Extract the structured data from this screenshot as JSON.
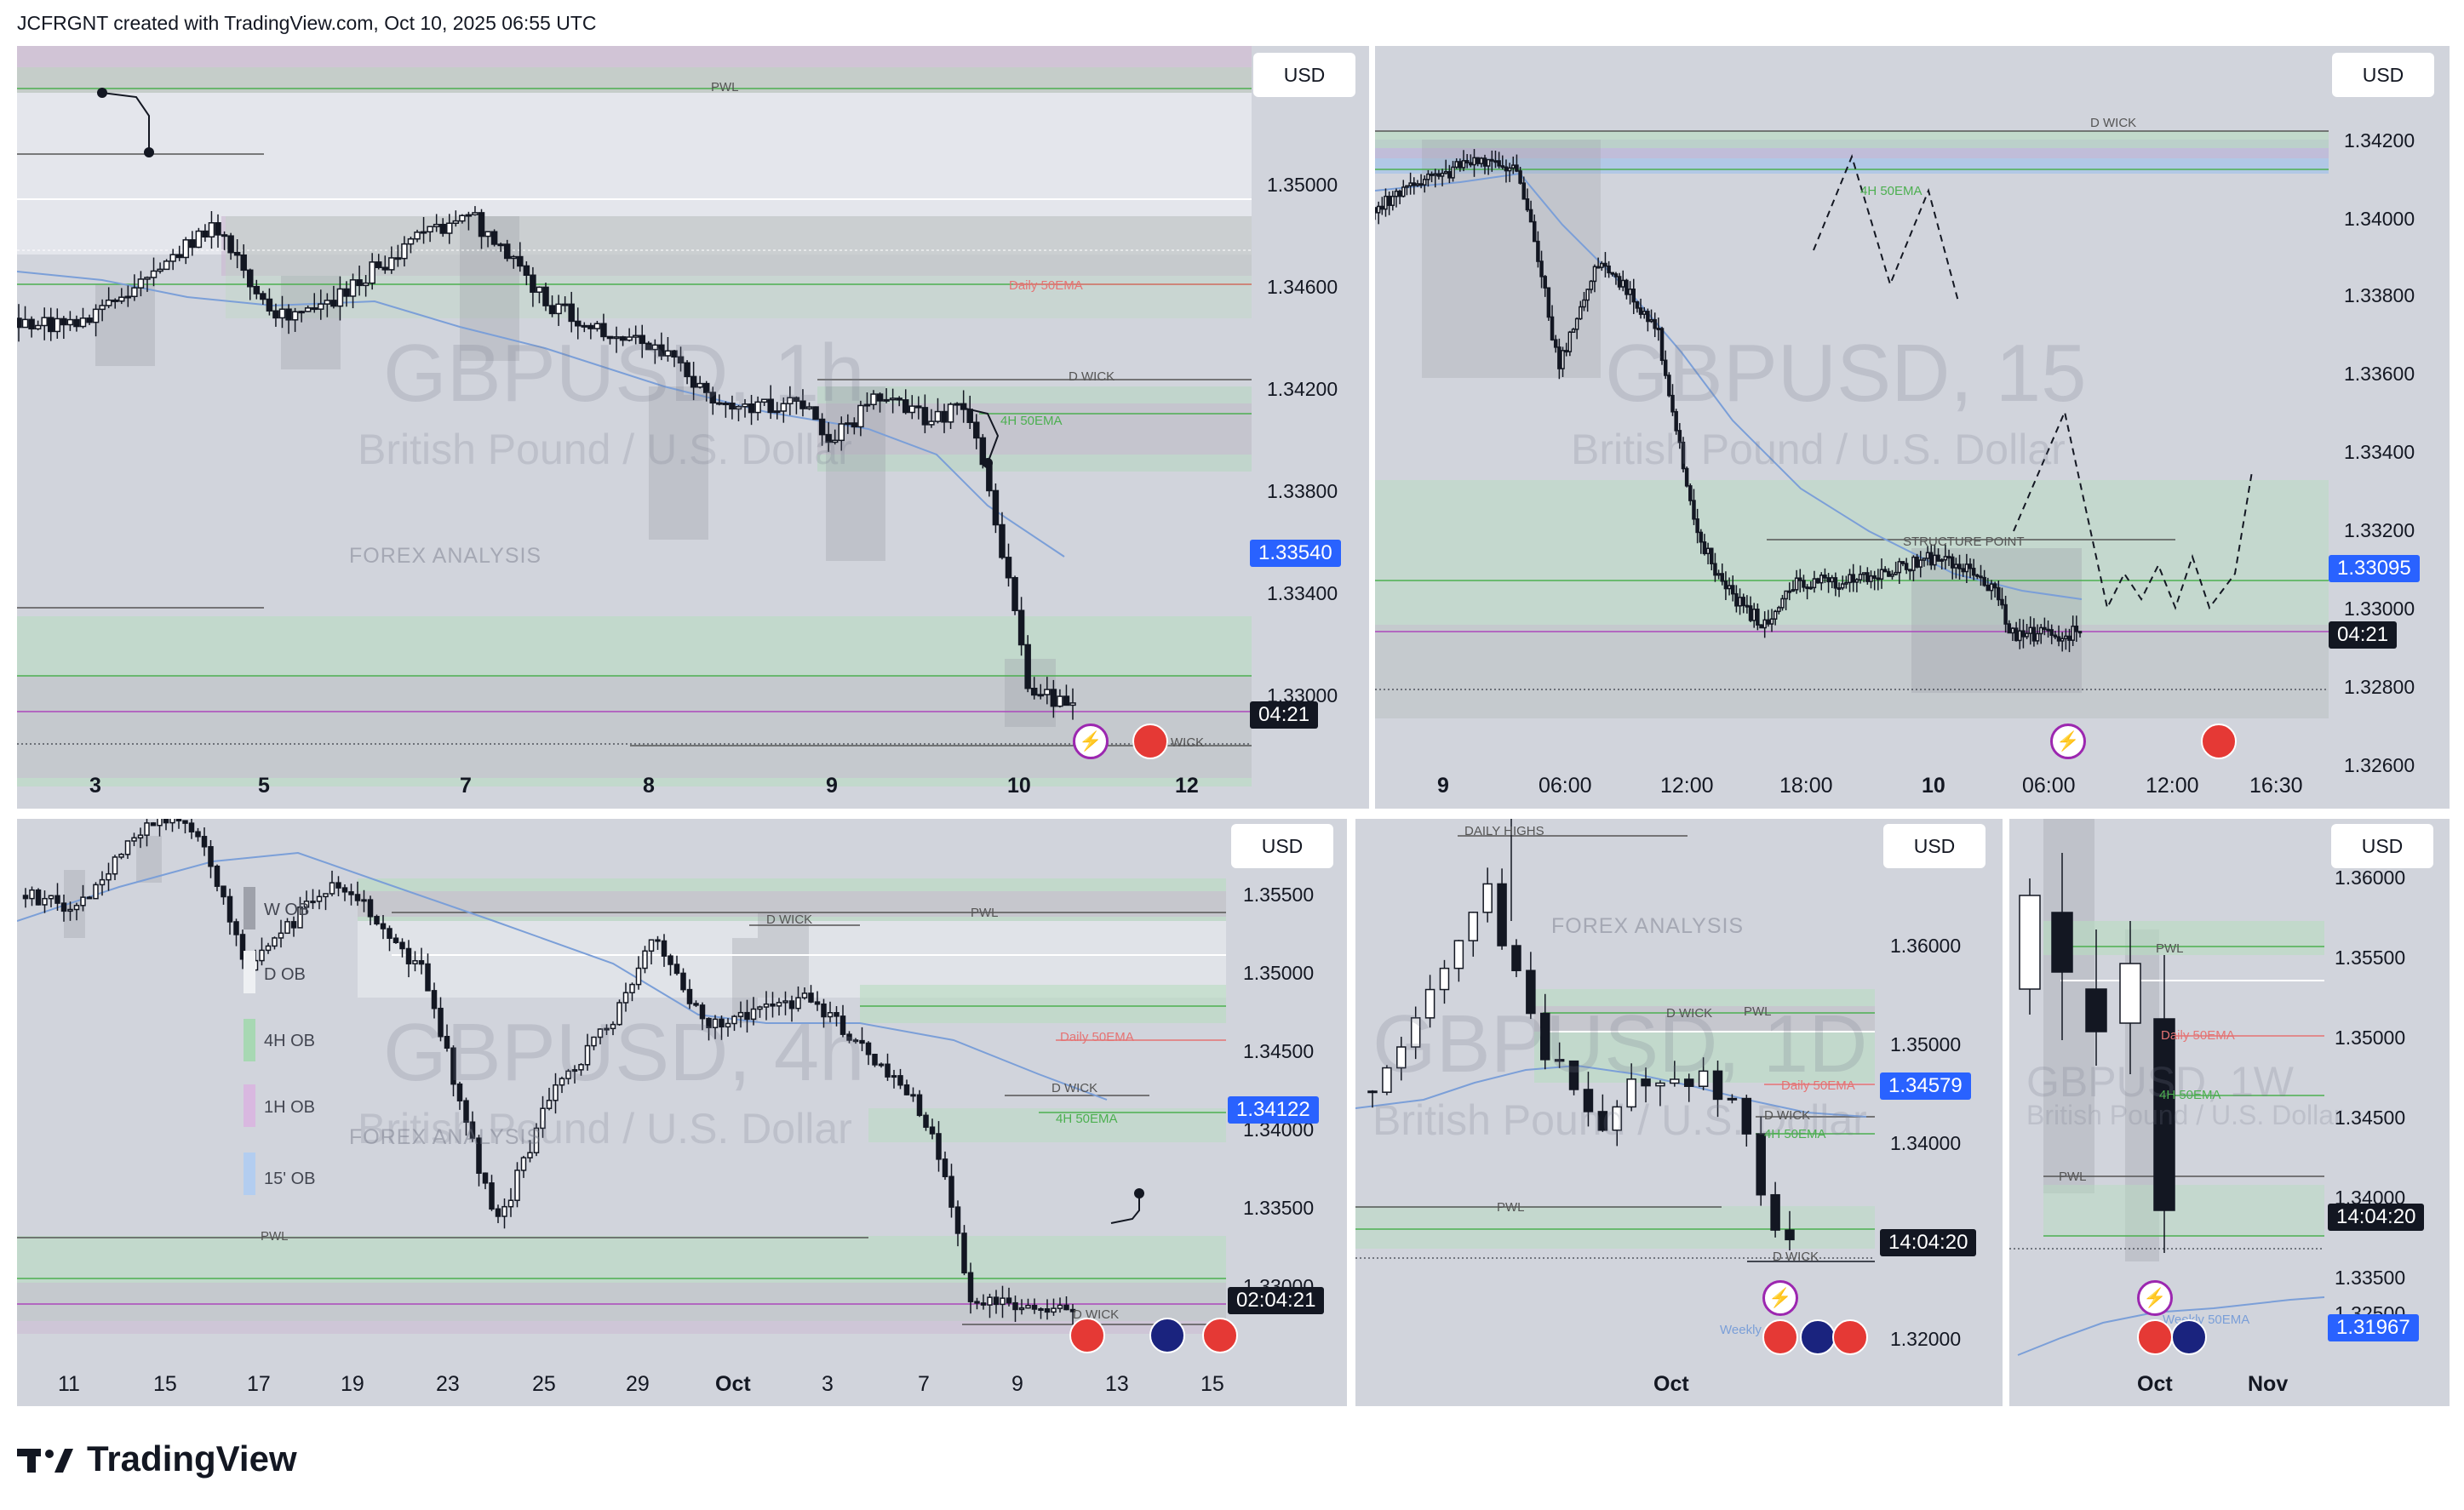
{
  "header": {
    "text": "JCFRGNT created with TradingView.com, Oct 10, 2025 06:55 UTC"
  },
  "footer": {
    "brand": "TradingView"
  },
  "common": {
    "currency": "USD"
  },
  "panels": {
    "p1": {
      "symbol": "GBPUSD, 1h",
      "description": "British Pound / U.S. Dollar",
      "brand_watermark": "FOREX ANALYSIS",
      "price_ticks": [
        "1.35000",
        "1.34600",
        "1.34200",
        "1.33800",
        "1.33400",
        "1.33000"
      ],
      "current_price": "1.33540",
      "countdown": "04:21",
      "time_labels": [
        "3",
        "5",
        "7",
        "8",
        "9",
        "10",
        "12"
      ],
      "annotations": {
        "pwl": "PWL",
        "d_wick": "D WICK",
        "ema_4h": "4H 50EMA",
        "ema_daily": "Daily 50EMA",
        "d_wick2": "D WICK"
      }
    },
    "p2": {
      "symbol": "GBPUSD, 15",
      "description": "British Pound / U.S. Dollar",
      "price_ticks": [
        "1.34200",
        "1.34000",
        "1.33800",
        "1.33600",
        "1.33400",
        "1.33200",
        "1.33000",
        "1.32800",
        "1.32600"
      ],
      "current_price": "1.33095",
      "countdown": "04:21",
      "time_labels": [
        "9",
        "06:00",
        "12:00",
        "18:00",
        "10",
        "06:00",
        "12:00",
        "16:30"
      ],
      "annotations": {
        "d_wick": "D WICK",
        "ema_4h": "4H 50EMA",
        "structure": "STRUCTURE POINT"
      }
    },
    "p3": {
      "symbol": "GBPUSD, 4h",
      "description": "British Pound / U.S. Dollar",
      "brand_watermark": "FOREX ANALYSIS",
      "price_ticks": [
        "1.35500",
        "1.35000",
        "1.34500",
        "1.34000",
        "1.33500",
        "1.33000"
      ],
      "current_price": "1.34122",
      "countdown": "02:04:21",
      "time_labels": [
        "11",
        "15",
        "17",
        "19",
        "23",
        "25",
        "29",
        "Oct",
        "3",
        "7",
        "9",
        "13",
        "15"
      ],
      "legend": [
        "W OB",
        "D OB",
        "4H OB",
        "1H OB",
        "15' OB"
      ],
      "annotations": {
        "d_wick": "D WICK",
        "pwl": "PWL",
        "ema_daily": "Daily 50EMA",
        "d_wick2": "D WICK",
        "ema_4h": "4H 50EMA",
        "pwl2": "PWL",
        "d_wick3": "D WICK"
      }
    },
    "p4": {
      "symbol": "GBPUSD, 1D",
      "description": "British Pound / U.S. Dollar",
      "brand_watermark": "FOREX ANALYSIS",
      "price_ticks": [
        "1.36000",
        "1.35000",
        "1.34000",
        "1.32000"
      ],
      "current_price": "1.34579",
      "countdown": "14:04:20",
      "time_labels": [
        "Oct"
      ],
      "annotations": {
        "daily_highs": "DAILY HIGHS",
        "d_wick": "D WICK",
        "pwl": "PWL",
        "ema_daily": "Daily 50EMA",
        "d_wick2": "D WICK",
        "ema_4h": "4H 50EMA",
        "pwl2": "PWL",
        "d_wick3": "D WICK",
        "weekly": "Weekly"
      }
    },
    "p5": {
      "symbol": "GBPUSD, 1W",
      "description": "British Pound / U.S. Dollar",
      "price_ticks": [
        "1.36000",
        "1.35500",
        "1.35000",
        "1.34500",
        "1.34000",
        "1.33500",
        "1.32500"
      ],
      "current_price": "1.31967",
      "countdown": "14:04:20",
      "time_labels": [
        "Oct",
        "Nov"
      ],
      "annotations": {
        "pwl": "PWL",
        "ema_daily": "Daily 50EMA",
        "ema_4h": "4H 50EMA",
        "pwl2": "PWL",
        "weekly_ema": "Weekly 50EMA"
      }
    }
  },
  "colors": {
    "panel_bg": "#d1d4dc",
    "green_zone": "#b7dcc0",
    "purple_zone": "#d9c6df",
    "blue_zone": "#a9c4e8",
    "ema_line": "#7b9fd8",
    "accent_blue": "#2962ff",
    "event_purple": "#9c27b0",
    "flag_red": "#e53935"
  }
}
